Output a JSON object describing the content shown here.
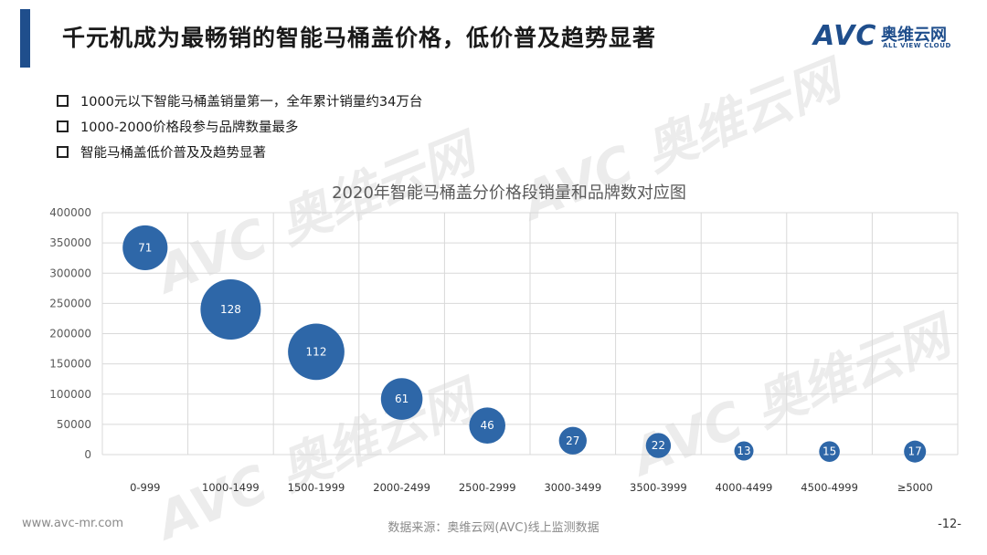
{
  "header": {
    "title": "千元机成为最畅销的智能马桶盖价格，低价普及趋势显著",
    "logo_mark": "AVC",
    "logo_cn": "奥维云网",
    "logo_en": "ALL VIEW CLOUD"
  },
  "bullets": [
    "1000元以下智能马桶盖销量第一，全年累计销量约34万台",
    "1000-2000价格段参与品牌数量最多",
    "智能马桶盖低价普及及趋势显著"
  ],
  "watermark": {
    "big": "AVC 奥维云网",
    "small": "ALL VIEW CLOUD"
  },
  "chart_data": {
    "type": "bubble",
    "title": "2020年智能马桶盖分价格段销量和品牌数对应图",
    "xlabel": "",
    "ylabel": "",
    "ylim": [
      0,
      400000
    ],
    "yticks": [
      0,
      50000,
      100000,
      150000,
      200000,
      250000,
      300000,
      350000,
      400000
    ],
    "grid": true,
    "categories": [
      "0-999",
      "1000-1499",
      "1500-1999",
      "2000-2499",
      "2500-2999",
      "3000-3499",
      "3500-3999",
      "4000-4499",
      "4500-4999",
      "≥5000"
    ],
    "sales": [
      342000,
      240000,
      170000,
      92000,
      48000,
      23000,
      15000,
      6000,
      5000,
      5000
    ],
    "brands": [
      71,
      128,
      112,
      61,
      46,
      27,
      22,
      13,
      15,
      17
    ],
    "bubble_color": "#2e67a8"
  },
  "footer": {
    "website": "www.avc-mr.com",
    "source": "数据来源：奥维云网(AVC)线上监测数据",
    "page": "-12-"
  }
}
